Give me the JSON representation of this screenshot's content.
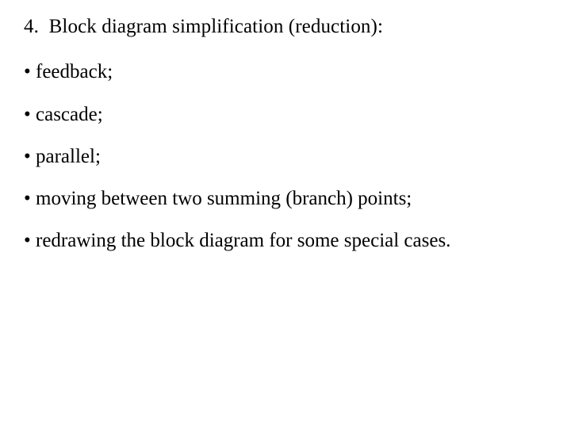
{
  "heading": {
    "number": "4.",
    "title": "Block diagram simplification (reduction):"
  },
  "bullets": [
    "feedback;",
    "cascade;",
    "parallel;",
    "moving between two summing (branch) points;",
    "redrawing the block diagram for some special cases."
  ],
  "style": {
    "font_family": "Times New Roman",
    "font_size_pt": 19,
    "text_color": "#000000",
    "background_color": "#ffffff",
    "bullet_char": "•"
  }
}
